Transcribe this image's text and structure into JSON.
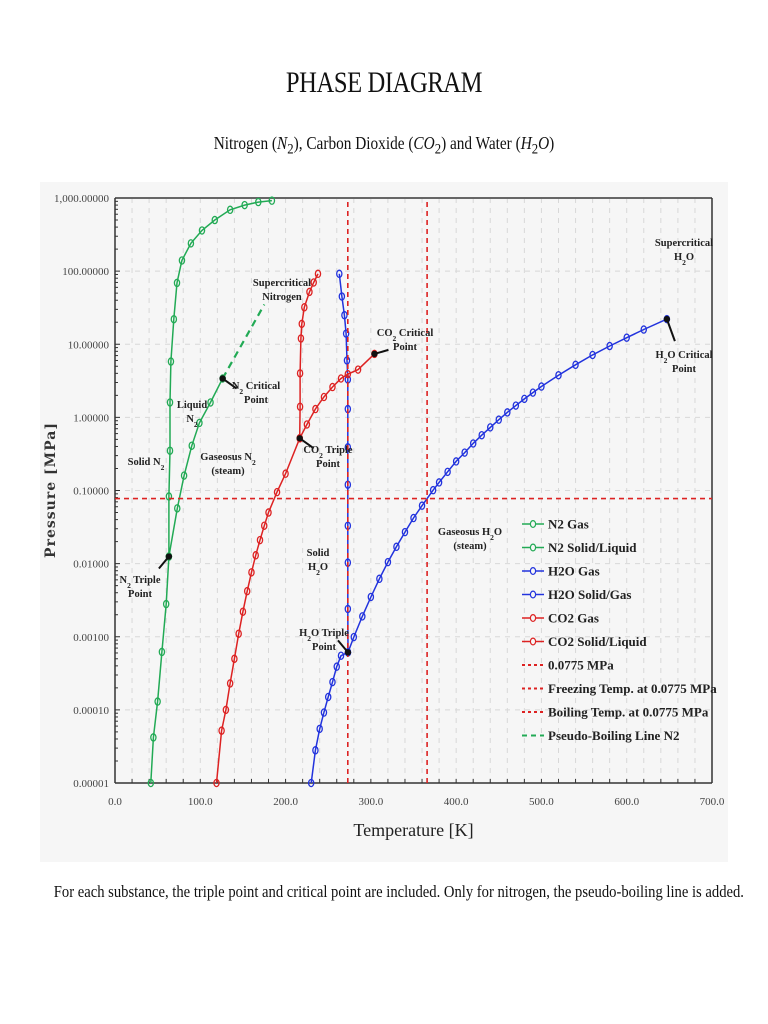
{
  "header": {
    "title": "PHASE DIAGRAM",
    "subtitle_parts": [
      "Nitrogen (",
      "N",
      "2",
      "), Carbon Dioxide (",
      "CO",
      "2",
      ") and Water (",
      "H",
      "2",
      "O",
      ")"
    ]
  },
  "caption": "For each substance, the triple point and critical point are included. Only for nitrogen, the pseudo-boiling line is added.",
  "chart_data": {
    "type": "line",
    "title": "PHASE DIAGRAM",
    "subtitle": "Nitrogen (N2), Carbon Dioxide (CO2) and Water (H2O)",
    "xlabel": "Temperature [K]",
    "ylabel": "Pressure [MPa]",
    "xlim": [
      0,
      700
    ],
    "ylim": [
      1e-05,
      1000
    ],
    "yscale": "log",
    "grid": true,
    "legend_position": "lower right",
    "x_ticks": [
      "0.0",
      "100.0",
      "200.0",
      "300.0",
      "400.0",
      "500.0",
      "600.0",
      "700.0"
    ],
    "y_ticks": [
      "0.00001",
      "0.00010",
      "0.00100",
      "0.01000",
      "0.10000",
      "1.00000",
      "10.00000",
      "100.00000",
      "1,000.00000"
    ],
    "series": [
      {
        "name": "N2 Gas",
        "color": "#22aa55",
        "style": "solid-marker",
        "points": [
          [
            42,
            1e-05
          ],
          [
            45,
            4.2e-05
          ],
          [
            50,
            0.00013
          ],
          [
            55,
            0.00062
          ],
          [
            60,
            0.0028
          ],
          [
            63.2,
            0.0125
          ],
          [
            73,
            0.057
          ],
          [
            81,
            0.16
          ],
          [
            90,
            0.41
          ],
          [
            99,
            0.84
          ],
          [
            112,
            1.6
          ],
          [
            126.2,
            3.4
          ]
        ]
      },
      {
        "name": "N2 Solid/Liquid",
        "color": "#22aa55",
        "style": "solid-marker",
        "points": [
          [
            63.2,
            0.0125
          ],
          [
            63.2,
            0.083
          ],
          [
            64.5,
            0.35
          ],
          [
            64.5,
            1.6
          ],
          [
            65.6,
            5.8
          ],
          [
            69,
            22
          ],
          [
            72.7,
            69
          ],
          [
            78.5,
            140
          ],
          [
            89,
            240
          ],
          [
            102,
            360
          ],
          [
            117,
            500
          ],
          [
            135,
            690
          ],
          [
            152,
            800
          ],
          [
            168,
            880
          ],
          [
            184,
            920
          ]
        ]
      },
      {
        "name": "H2O Gas",
        "color": "#2233dd",
        "style": "solid-marker",
        "points": [
          [
            273.16,
            0.000612
          ],
          [
            280,
            0.00099
          ],
          [
            290,
            0.0019
          ],
          [
            300,
            0.0035
          ],
          [
            310,
            0.0062
          ],
          [
            320,
            0.0105
          ],
          [
            330,
            0.017
          ],
          [
            340,
            0.027
          ],
          [
            350,
            0.042
          ],
          [
            360,
            0.062
          ],
          [
            373,
            0.101
          ],
          [
            380,
            0.129
          ],
          [
            390,
            0.18
          ],
          [
            400,
            0.25
          ],
          [
            410,
            0.33
          ],
          [
            420,
            0.44
          ],
          [
            430,
            0.57
          ],
          [
            440,
            0.73
          ],
          [
            450,
            0.93
          ],
          [
            460,
            1.17
          ],
          [
            470,
            1.45
          ],
          [
            480,
            1.79
          ],
          [
            490,
            2.18
          ],
          [
            500,
            2.64
          ],
          [
            520,
            3.77
          ],
          [
            540,
            5.24
          ],
          [
            560,
            7.14
          ],
          [
            580,
            9.46
          ],
          [
            600,
            12.3
          ],
          [
            620,
            15.9
          ],
          [
            647.1,
            22.06
          ]
        ]
      },
      {
        "name": "H2O Solid/Gas",
        "color": "#2233dd",
        "style": "solid-marker",
        "points": [
          [
            230,
            1e-05
          ],
          [
            235,
            2.8e-05
          ],
          [
            240,
            5.5e-05
          ],
          [
            245,
            9.2e-05
          ],
          [
            250,
            0.00015
          ],
          [
            255,
            0.00024
          ],
          [
            260,
            0.00039
          ],
          [
            265,
            0.00055
          ],
          [
            273.16,
            0.000612
          ],
          [
            273,
            0.0024
          ],
          [
            273,
            0.0103
          ],
          [
            273,
            0.033
          ],
          [
            273,
            0.12
          ],
          [
            273,
            0.39
          ],
          [
            273,
            1.3
          ],
          [
            273,
            3.3
          ],
          [
            272,
            6
          ],
          [
            271,
            14
          ],
          [
            269,
            25
          ],
          [
            266,
            45
          ],
          [
            263,
            92
          ]
        ]
      },
      {
        "name": "CO2 Gas",
        "color": "#dd2222",
        "style": "solid-marker",
        "points": [
          [
            119,
            1e-05
          ],
          [
            125,
            5.2e-05
          ],
          [
            130,
            0.0001
          ],
          [
            135,
            0.00023
          ],
          [
            140,
            0.0005
          ],
          [
            145,
            0.0011
          ],
          [
            150,
            0.0022
          ],
          [
            155,
            0.0042
          ],
          [
            160,
            0.0076
          ],
          [
            165,
            0.013
          ],
          [
            170,
            0.021
          ],
          [
            175,
            0.033
          ],
          [
            180,
            0.05
          ],
          [
            190,
            0.095
          ],
          [
            200,
            0.17
          ],
          [
            216.6,
            0.518
          ],
          [
            225,
            0.8
          ],
          [
            235,
            1.3
          ],
          [
            245,
            1.9
          ],
          [
            255,
            2.6
          ],
          [
            265,
            3.4
          ],
          [
            273,
            3.9
          ],
          [
            285,
            4.5
          ],
          [
            304.2,
            7.38
          ]
        ]
      },
      {
        "name": "CO2 Solid/Liquid",
        "color": "#dd2222",
        "style": "solid-marker",
        "points": [
          [
            216.6,
            0.518
          ],
          [
            217,
            1.4
          ],
          [
            217,
            4
          ],
          [
            218,
            12
          ],
          [
            219,
            19
          ],
          [
            222,
            32
          ],
          [
            228,
            52
          ],
          [
            233,
            70
          ],
          [
            238,
            92
          ]
        ]
      },
      {
        "name": "0.0775 MPa",
        "color": "#dd2222",
        "style": "dashed",
        "points": [
          [
            0,
            0.0775
          ],
          [
            700,
            0.0775
          ]
        ]
      },
      {
        "name": "Freezing Temp. at 0.0775 MPa",
        "color": "#dd2222",
        "style": "dashed",
        "points": [
          [
            273,
            1e-05
          ],
          [
            273,
            1000
          ]
        ]
      },
      {
        "name": "Boiling Temp. at 0.0775 MPa",
        "color": "#dd2222",
        "style": "dashed",
        "points": [
          [
            366,
            1e-05
          ],
          [
            366,
            1000
          ]
        ]
      },
      {
        "name": "Pseudo-Boiling Line N2",
        "color": "#22aa55",
        "style": "dashed",
        "points": [
          [
            126.2,
            3.4
          ],
          [
            175,
            35
          ]
        ]
      }
    ],
    "special_points": [
      {
        "name": "N2 Triple Point",
        "T": 63.2,
        "P": 0.0125
      },
      {
        "name": "N2 Critical Point",
        "T": 126.2,
        "P": 3.4
      },
      {
        "name": "CO2 Triple Point",
        "T": 216.6,
        "P": 0.518
      },
      {
        "name": "CO2 Critical Point",
        "T": 304.2,
        "P": 7.38
      },
      {
        "name": "H2O Triple Point",
        "T": 273.16,
        "P": 0.000612
      },
      {
        "name": "H2O Critical Point",
        "T": 647.1,
        "P": 22.06
      }
    ],
    "annotations": [
      {
        "text": [
          "Supercritical",
          "Nitrogen"
        ],
        "x": 282,
        "y": 286
      },
      {
        "text": [
          "Liquid",
          "N2"
        ],
        "x": 192,
        "y": 408
      },
      {
        "text": [
          "Solid N2"
        ],
        "x": 146,
        "y": 465
      },
      {
        "text": [
          "Gaseosus N2",
          "(steam)"
        ],
        "x": 228,
        "y": 460
      },
      {
        "text": [
          "CO2 Critical",
          "Point"
        ],
        "x": 405,
        "y": 336
      },
      {
        "text": [
          "CO2 Triple",
          "Point"
        ],
        "x": 328,
        "y": 453
      },
      {
        "text": [
          "Solid",
          "H2O"
        ],
        "x": 318,
        "y": 556
      },
      {
        "text": [
          "Gaseosus H2O",
          "(steam)"
        ],
        "x": 470,
        "y": 535
      },
      {
        "text": [
          "Supercritical",
          "H2O"
        ],
        "x": 684,
        "y": 246
      },
      {
        "text": [
          "H2O Critical",
          "Point"
        ],
        "x": 684,
        "y": 358
      },
      {
        "text": [
          "N2 Triple",
          "Point"
        ],
        "x": 140,
        "y": 583
      },
      {
        "text": [
          "N2 Critical",
          "Point"
        ],
        "x": 256,
        "y": 389
      },
      {
        "text": [
          "H2O Triple",
          "Point"
        ],
        "x": 324,
        "y": 636
      }
    ]
  }
}
